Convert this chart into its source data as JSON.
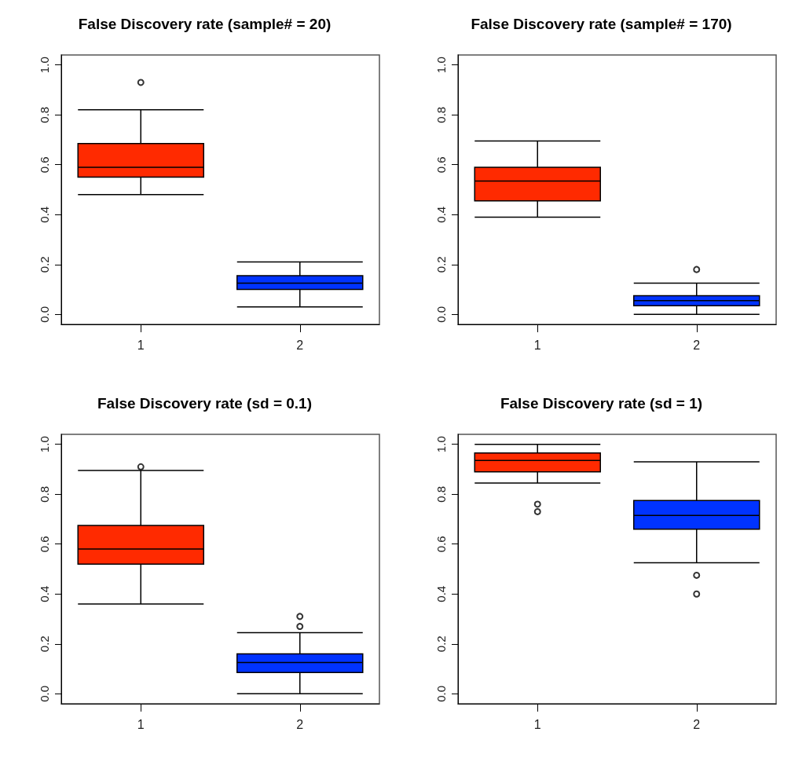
{
  "chart_data": [
    {
      "type": "box",
      "title": "False Discovery rate (sample# = 20)",
      "categories": [
        "1",
        "2"
      ],
      "colors": [
        "#ff2a00",
        "#0033ff"
      ],
      "ylim": [
        -0.04,
        1.04
      ],
      "yticks": [
        {
          "value": 0,
          "label": "0.0"
        },
        {
          "value": 0.2,
          "label": "0.2"
        },
        {
          "value": 0.4,
          "label": "0.4"
        },
        {
          "value": 0.6,
          "label": "0.6"
        },
        {
          "value": 0.8,
          "label": "0.8"
        },
        {
          "value": 1,
          "label": "1.0"
        }
      ],
      "boxes": [
        {
          "low": 0.48,
          "q1": 0.55,
          "median": 0.59,
          "q3": 0.685,
          "high": 0.82,
          "outliers": [
            0.93
          ]
        },
        {
          "low": 0.03,
          "q1": 0.1,
          "median": 0.125,
          "q3": 0.155,
          "high": 0.21
        }
      ]
    },
    {
      "type": "box",
      "title": "False Discovery rate (sample# = 170)",
      "categories": [
        "1",
        "2"
      ],
      "colors": [
        "#ff2a00",
        "#0033ff"
      ],
      "ylim": [
        -0.04,
        1.04
      ],
      "yticks": [
        {
          "value": 0,
          "label": "0.0"
        },
        {
          "value": 0.2,
          "label": "0.2"
        },
        {
          "value": 0.4,
          "label": "0.4"
        },
        {
          "value": 0.6,
          "label": "0.6"
        },
        {
          "value": 0.8,
          "label": "0.8"
        },
        {
          "value": 1,
          "label": "1.0"
        }
      ],
      "boxes": [
        {
          "low": 0.39,
          "q1": 0.455,
          "median": 0.535,
          "q3": 0.59,
          "high": 0.695
        },
        {
          "low": 0,
          "q1": 0.035,
          "median": 0.055,
          "q3": 0.075,
          "high": 0.125,
          "outliers": [
            0.18
          ]
        }
      ]
    },
    {
      "type": "box",
      "title": "False Discovery rate (sd = 0.1)",
      "categories": [
        "1",
        "2"
      ],
      "colors": [
        "#ff2a00",
        "#0033ff"
      ],
      "ylim": [
        -0.04,
        1.04
      ],
      "yticks": [
        {
          "value": 0,
          "label": "0.0"
        },
        {
          "value": 0.2,
          "label": "0.2"
        },
        {
          "value": 0.4,
          "label": "0.4"
        },
        {
          "value": 0.6,
          "label": "0.6"
        },
        {
          "value": 0.8,
          "label": "0.8"
        },
        {
          "value": 1,
          "label": "1.0"
        }
      ],
      "boxes": [
        {
          "low": 0.36,
          "q1": 0.52,
          "median": 0.58,
          "q3": 0.675,
          "high": 0.895,
          "outliers": [
            0.91
          ]
        },
        {
          "low": 0,
          "q1": 0.085,
          "median": 0.125,
          "q3": 0.16,
          "high": 0.245,
          "outliers": [
            0.27,
            0.31
          ]
        }
      ]
    },
    {
      "type": "box",
      "title": "False Discovery rate (sd = 1)",
      "categories": [
        "1",
        "2"
      ],
      "colors": [
        "#ff2a00",
        "#0033ff"
      ],
      "ylim": [
        -0.04,
        1.04
      ],
      "yticks": [
        {
          "value": 0,
          "label": "0.0"
        },
        {
          "value": 0.2,
          "label": "0.2"
        },
        {
          "value": 0.4,
          "label": "0.4"
        },
        {
          "value": 0.6,
          "label": "0.6"
        },
        {
          "value": 0.8,
          "label": "0.8"
        },
        {
          "value": 1,
          "label": "1.0"
        }
      ],
      "boxes": [
        {
          "low": 0.845,
          "q1": 0.89,
          "median": 0.935,
          "q3": 0.965,
          "high": 1.0,
          "outliers": [
            0.73,
            0.76
          ]
        },
        {
          "low": 0.525,
          "q1": 0.66,
          "median": 0.715,
          "q3": 0.775,
          "high": 0.93,
          "outliers": [
            0.4,
            0.475
          ]
        }
      ]
    }
  ]
}
